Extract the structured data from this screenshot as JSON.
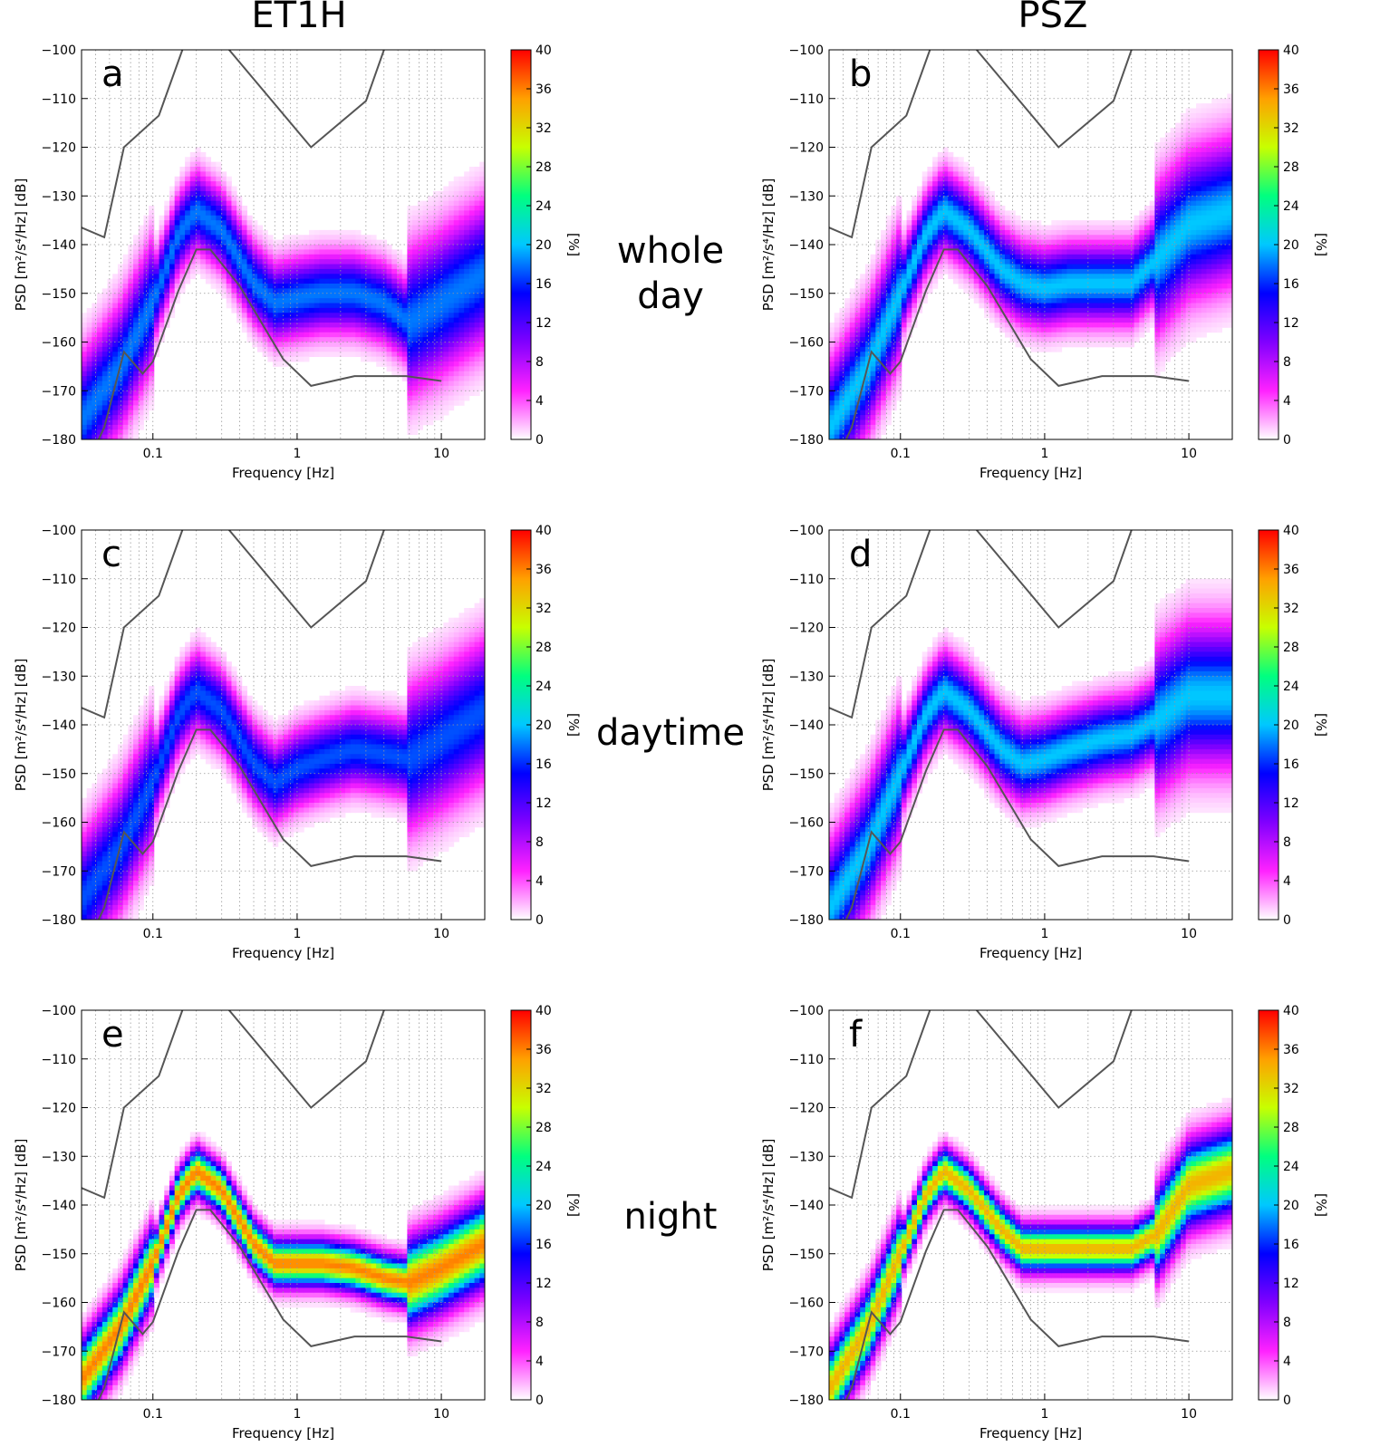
{
  "chart_data": {
    "type": "heatmap",
    "column_titles": [
      "ET1H",
      "PSZ"
    ],
    "row_labels": [
      [
        "whole",
        "day"
      ],
      [
        "daytime"
      ],
      [
        "night"
      ]
    ],
    "xlabel": "Frequency [Hz]",
    "ylabel": "PSD [m²/s⁴/Hz] [dB]",
    "colorbar_label": "[%]",
    "x_scale": "log",
    "xlim": [
      0.032,
      20
    ],
    "ylim": [
      -180,
      -100
    ],
    "x_ticks": [
      0.1,
      1,
      10
    ],
    "x_tick_labels": [
      "0.1",
      "1",
      "10"
    ],
    "y_ticks": [
      -100,
      -110,
      -120,
      -130,
      -140,
      -150,
      -160,
      -170,
      -180
    ],
    "y_tick_labels": [
      "−100",
      "−110",
      "−120",
      "−130",
      "−140",
      "−150",
      "−160",
      "−170",
      "−180"
    ],
    "colorbar_range": [
      0,
      40
    ],
    "colorbar_ticks": [
      0,
      4,
      8,
      12,
      16,
      20,
      24,
      28,
      32,
      36,
      40
    ],
    "colorbar_tick_labels": [
      "0",
      "4",
      "8",
      "12",
      "16",
      "20",
      "24",
      "28",
      "32",
      "36",
      "40"
    ],
    "colorbar_colors": [
      "#ffffff",
      "#ff22ff",
      "#8000ff",
      "#0000ff",
      "#00c8ff",
      "#00ff80",
      "#c8ff00",
      "#ffa000",
      "#ff0000"
    ],
    "reference_curves": {
      "upper": {
        "freq_hz": [
          0.032,
          0.046,
          0.063,
          0.11,
          0.16,
          0.2,
          1.25,
          3.0,
          4.0
        ],
        "psd_db": [
          -136.5,
          -138.5,
          -120,
          -113.5,
          -100,
          -92,
          -120,
          -110.5,
          -100
        ]
      },
      "lower": {
        "freq_hz": [
          0.042,
          0.046,
          0.063,
          0.085,
          0.1,
          0.15,
          0.2,
          0.25,
          0.4,
          0.8,
          1.25,
          2.5,
          5.7,
          10
        ],
        "psd_db": [
          -180,
          -177.5,
          -162,
          -166.5,
          -164,
          -149.5,
          -141,
          -141,
          -148.5,
          -163.5,
          -169,
          -167,
          -167,
          -168
        ]
      }
    },
    "panels": [
      {
        "letter": "a",
        "station": "ET1H",
        "period": "whole day",
        "median_psd_db": {
          "freq_hz": [
            0.032,
            0.06,
            0.1,
            0.15,
            0.2,
            0.3,
            0.5,
            0.7,
            1.0,
            1.5,
            2.5,
            4.0,
            6.0,
            10,
            20
          ],
          "values": [
            -176,
            -165,
            -152,
            -138,
            -133,
            -137,
            -148,
            -152,
            -151,
            -150,
            -150,
            -152,
            -156,
            -152,
            -146
          ]
        },
        "spread_db": 5,
        "peak_pct": 18
      },
      {
        "letter": "b",
        "station": "PSZ",
        "period": "whole day",
        "median_psd_db": {
          "freq_hz": [
            0.032,
            0.06,
            0.1,
            0.15,
            0.2,
            0.3,
            0.5,
            0.7,
            1.0,
            1.5,
            2.5,
            4.0,
            6.0,
            10,
            20
          ],
          "values": [
            -178,
            -165,
            -150,
            -138,
            -133,
            -137,
            -145,
            -148,
            -149,
            -148,
            -148,
            -148,
            -143,
            -136,
            -133
          ]
        },
        "spread_db": 5,
        "peak_pct": 20
      },
      {
        "letter": "c",
        "station": "ET1H",
        "period": "daytime",
        "median_psd_db": {
          "freq_hz": [
            0.032,
            0.06,
            0.1,
            0.15,
            0.2,
            0.3,
            0.5,
            0.7,
            1.0,
            1.5,
            2.5,
            4.0,
            6.0,
            10,
            20
          ],
          "values": [
            -176,
            -165,
            -152,
            -138,
            -133,
            -137,
            -148,
            -152,
            -149,
            -147,
            -145,
            -146,
            -147,
            -143,
            -137
          ]
        },
        "spread_db": 5,
        "peak_pct": 17
      },
      {
        "letter": "d",
        "station": "PSZ",
        "period": "daytime",
        "median_psd_db": {
          "freq_hz": [
            0.032,
            0.06,
            0.1,
            0.15,
            0.2,
            0.3,
            0.5,
            0.7,
            1.0,
            1.5,
            2.5,
            4.0,
            6.0,
            10,
            20
          ],
          "values": [
            -178,
            -165,
            -150,
            -138,
            -133,
            -137,
            -145,
            -148,
            -147,
            -145,
            -143,
            -142,
            -139,
            -134,
            -134
          ]
        },
        "spread_db": 5,
        "peak_pct": 20
      },
      {
        "letter": "e",
        "station": "ET1H",
        "period": "night",
        "median_psd_db": {
          "freq_hz": [
            0.032,
            0.06,
            0.1,
            0.15,
            0.2,
            0.3,
            0.5,
            0.7,
            1.0,
            1.5,
            2.5,
            4.0,
            6.0,
            10,
            20
          ],
          "values": [
            -176,
            -165,
            -152,
            -138,
            -133,
            -137,
            -148,
            -152,
            -152,
            -152,
            -153,
            -155,
            -156,
            -153,
            -148
          ]
        },
        "spread_db": 3,
        "peak_pct": 36
      },
      {
        "letter": "f",
        "station": "PSZ",
        "period": "night",
        "median_psd_db": {
          "freq_hz": [
            0.032,
            0.06,
            0.1,
            0.15,
            0.2,
            0.3,
            0.5,
            0.7,
            1.0,
            1.5,
            2.5,
            4.0,
            6.0,
            10,
            20
          ],
          "values": [
            -178,
            -165,
            -150,
            -138,
            -133,
            -137,
            -145,
            -149,
            -149,
            -149,
            -149,
            -149,
            -146,
            -136,
            -133
          ]
        },
        "spread_db": 3,
        "peak_pct": 34
      }
    ]
  }
}
